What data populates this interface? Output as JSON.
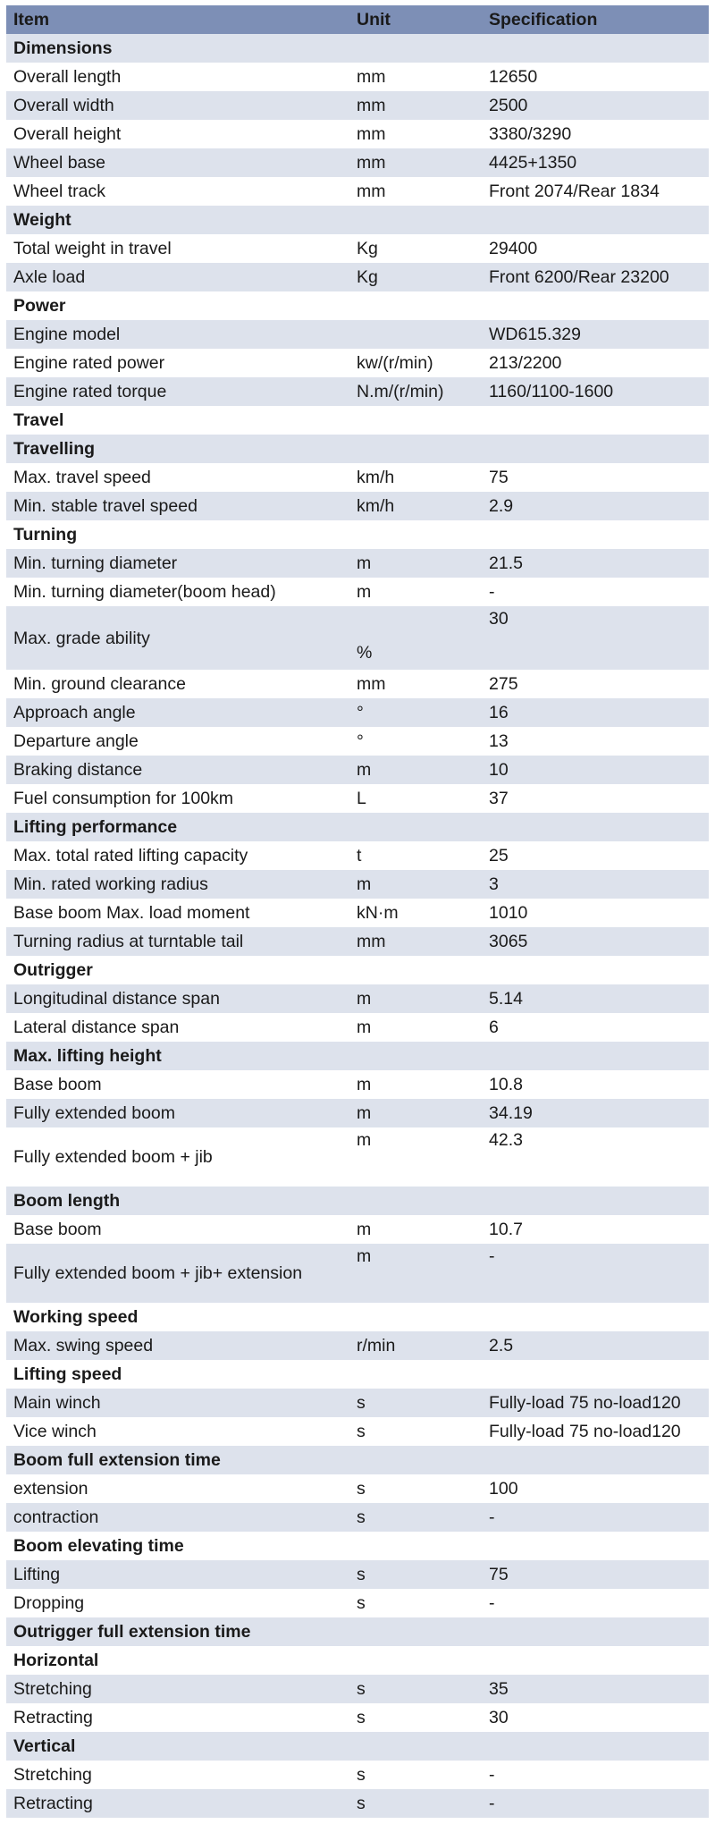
{
  "header": {
    "item": "Item",
    "unit": "Unit",
    "specification": "Specification"
  },
  "rows": [
    {
      "item": "Dimensions",
      "section": true
    },
    {
      "item": "Overall length",
      "unit": "mm",
      "value": "12650"
    },
    {
      "item": "Overall width",
      "unit": "mm",
      "value": "2500"
    },
    {
      "item": "Overall height",
      "unit": "mm",
      "value": "3380/3290"
    },
    {
      "item": "Wheel base",
      "unit": "mm",
      "value": "4425+1350"
    },
    {
      "item": "Wheel track",
      "unit": "mm",
      "value": "Front 2074/Rear 1834"
    },
    {
      "item": "Weight",
      "section": true
    },
    {
      "item": "Total weight in travel",
      "unit": "Kg",
      "value": "29400"
    },
    {
      "item": "Axle load",
      "unit": "Kg",
      "value": "Front 6200/Rear 23200"
    },
    {
      "item": "Power",
      "section": true
    },
    {
      "item": "Engine model",
      "unit": "",
      "value": "WD615.329"
    },
    {
      "item": "Engine rated power",
      "unit": "kw/(r/min)",
      "value": "213/2200"
    },
    {
      "item": "Engine rated torque",
      "unit": "N.m/(r/min)",
      "value": "1160/1100-1600"
    },
    {
      "item": "Travel",
      "section": true
    },
    {
      "item": "Travelling",
      "section": true
    },
    {
      "item": "Max. travel speed",
      "unit": "km/h",
      "value": "75"
    },
    {
      "item": "Min. stable travel speed",
      "unit": "km/h",
      "value": "2.9"
    },
    {
      "item": "Turning",
      "section": true
    },
    {
      "item": "Min. turning diameter",
      "unit": "m",
      "value": "21.5"
    },
    {
      "item": "Min. turning diameter(boom head)",
      "unit": "m",
      "value": "-"
    },
    {
      "item": "Max. grade ability",
      "unit": "%",
      "value": "30",
      "tall": "grade"
    },
    {
      "item": "Min. ground clearance",
      "unit": "mm",
      "value": "275"
    },
    {
      "item": "Approach angle",
      "unit": "°",
      "value": "16"
    },
    {
      "item": "Departure angle",
      "unit": "°",
      "value": "13"
    },
    {
      "item": "Braking distance",
      "unit": "m",
      "value": "10"
    },
    {
      "item": "Fuel consumption for 100km",
      "unit": "L",
      "value": "37"
    },
    {
      "item": "Lifting performance",
      "section": true
    },
    {
      "item": "Max. total rated lifting capacity",
      "unit": "t",
      "value": "25"
    },
    {
      "item": "Min. rated working radius",
      "unit": "m",
      "value": "3"
    },
    {
      "item": "Base boom Max. load moment",
      "unit": "kN·m",
      "value": "1010"
    },
    {
      "item": "Turning radius at turntable tail",
      "unit": "mm",
      "value": "3065"
    },
    {
      "item": "Outrigger",
      "section": true
    },
    {
      "item": "Longitudinal distance span",
      "unit": "m",
      "value": "5.14"
    },
    {
      "item": "Lateral distance span",
      "unit": "m",
      "value": "6"
    },
    {
      "item": "Max. lifting height",
      "section": true
    },
    {
      "item": "Base boom",
      "unit": "m",
      "value": "10.8"
    },
    {
      "item": "Fully extended boom",
      "unit": "m",
      "value": "34.19"
    },
    {
      "item": "Fully extended boom + jib",
      "unit": "m",
      "value": "42.3",
      "tall": "top"
    },
    {
      "item": "Boom length",
      "section": true
    },
    {
      "item": "Base boom",
      "unit": "m",
      "value": "10.7"
    },
    {
      "item": "Fully extended boom + jib+ extension",
      "unit": "m",
      "value": "-",
      "tall": "top"
    },
    {
      "item": "Working speed",
      "section": true
    },
    {
      "item": "Max. swing speed",
      "unit": "r/min",
      "value": "2.5"
    },
    {
      "item": "Lifting speed",
      "section": true
    },
    {
      "item": "Main winch",
      "unit": "s",
      "value": "Fully-load 75 no-load120"
    },
    {
      "item": "Vice winch",
      "unit": "s",
      "value": "Fully-load 75 no-load120"
    },
    {
      "item": "Boom full extension time",
      "section": true
    },
    {
      "item": "extension",
      "unit": "s",
      "value": "100"
    },
    {
      "item": "contraction",
      "unit": "s",
      "value": "-"
    },
    {
      "item": "Boom elevating time",
      "section": true
    },
    {
      "item": "Lifting",
      "unit": "s",
      "value": "75"
    },
    {
      "item": "Dropping",
      "unit": "s",
      "value": "-"
    },
    {
      "item": "Outrigger full extension time",
      "section": true
    },
    {
      "item": "Horizontal",
      "section": true
    },
    {
      "item": "Stretching",
      "unit": "s",
      "value": "35"
    },
    {
      "item": "Retracting",
      "unit": "s",
      "value": "30"
    },
    {
      "item": "Vertical",
      "section": true
    },
    {
      "item": "Stretching",
      "unit": "s",
      "value": "-"
    },
    {
      "item": "Retracting",
      "unit": "s",
      "value": "-"
    }
  ]
}
